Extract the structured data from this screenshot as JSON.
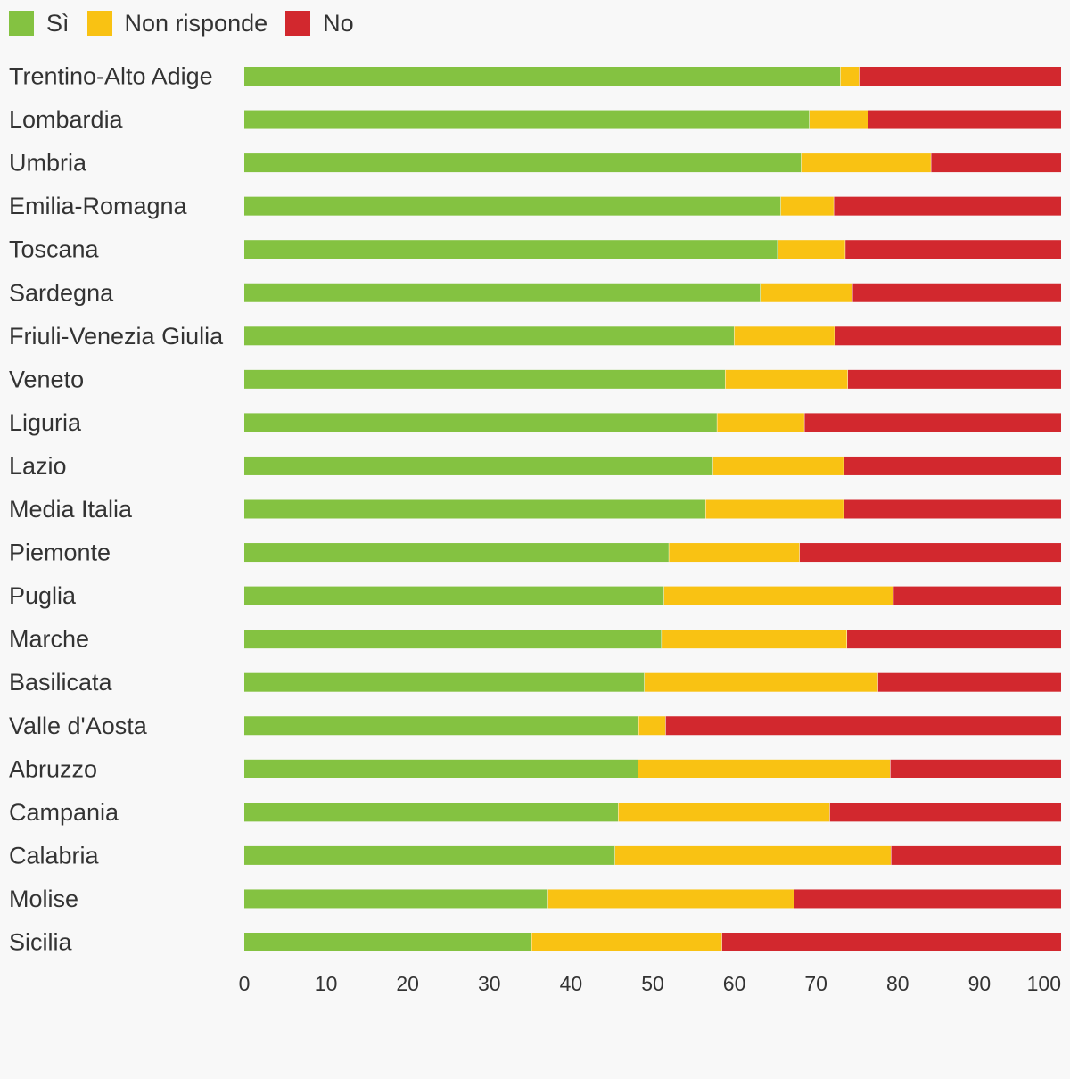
{
  "chart_data": {
    "type": "bar",
    "orientation": "horizontal",
    "stacked": true,
    "categories": [
      "Trentino-Alto Adige",
      "Lombardia",
      "Umbria",
      "Emilia-Romagna",
      "Toscana",
      "Sardegna",
      "Friuli-Venezia Giulia",
      "Veneto",
      "Liguria",
      "Lazio",
      "Media Italia",
      "Piemonte",
      "Puglia",
      "Marche",
      "Basilicata",
      "Valle d'Aosta",
      "Abruzzo",
      "Campania",
      "Calabria",
      "Molise",
      "Sicilia"
    ],
    "series": [
      {
        "name": "Sì",
        "color": "#84c241",
        "values": [
          73.0,
          69.2,
          68.2,
          65.7,
          65.3,
          63.2,
          60.0,
          58.9,
          57.9,
          57.4,
          56.5,
          52.0,
          51.4,
          51.1,
          49.0,
          48.3,
          48.2,
          45.8,
          45.4,
          37.2,
          35.2
        ]
      },
      {
        "name": "Non risponde",
        "color": "#f9c213",
        "values": [
          2.3,
          7.2,
          15.9,
          6.5,
          8.3,
          11.3,
          12.3,
          15.0,
          10.7,
          16.0,
          16.9,
          16.0,
          28.1,
          22.7,
          28.6,
          3.3,
          30.9,
          25.9,
          33.8,
          30.1,
          23.3
        ]
      },
      {
        "name": "No",
        "color": "#d2282e",
        "values": [
          24.7,
          23.6,
          15.9,
          27.8,
          26.4,
          25.5,
          27.7,
          26.1,
          31.4,
          26.6,
          26.6,
          32.0,
          20.5,
          26.2,
          22.4,
          48.4,
          20.9,
          28.3,
          20.8,
          32.7,
          41.5
        ]
      }
    ],
    "xlim": [
      0,
      100
    ],
    "x_ticks": [
      0,
      10,
      20,
      30,
      40,
      50,
      60,
      70,
      80,
      90,
      100
    ],
    "legend_position": "top-left",
    "grid": false
  }
}
